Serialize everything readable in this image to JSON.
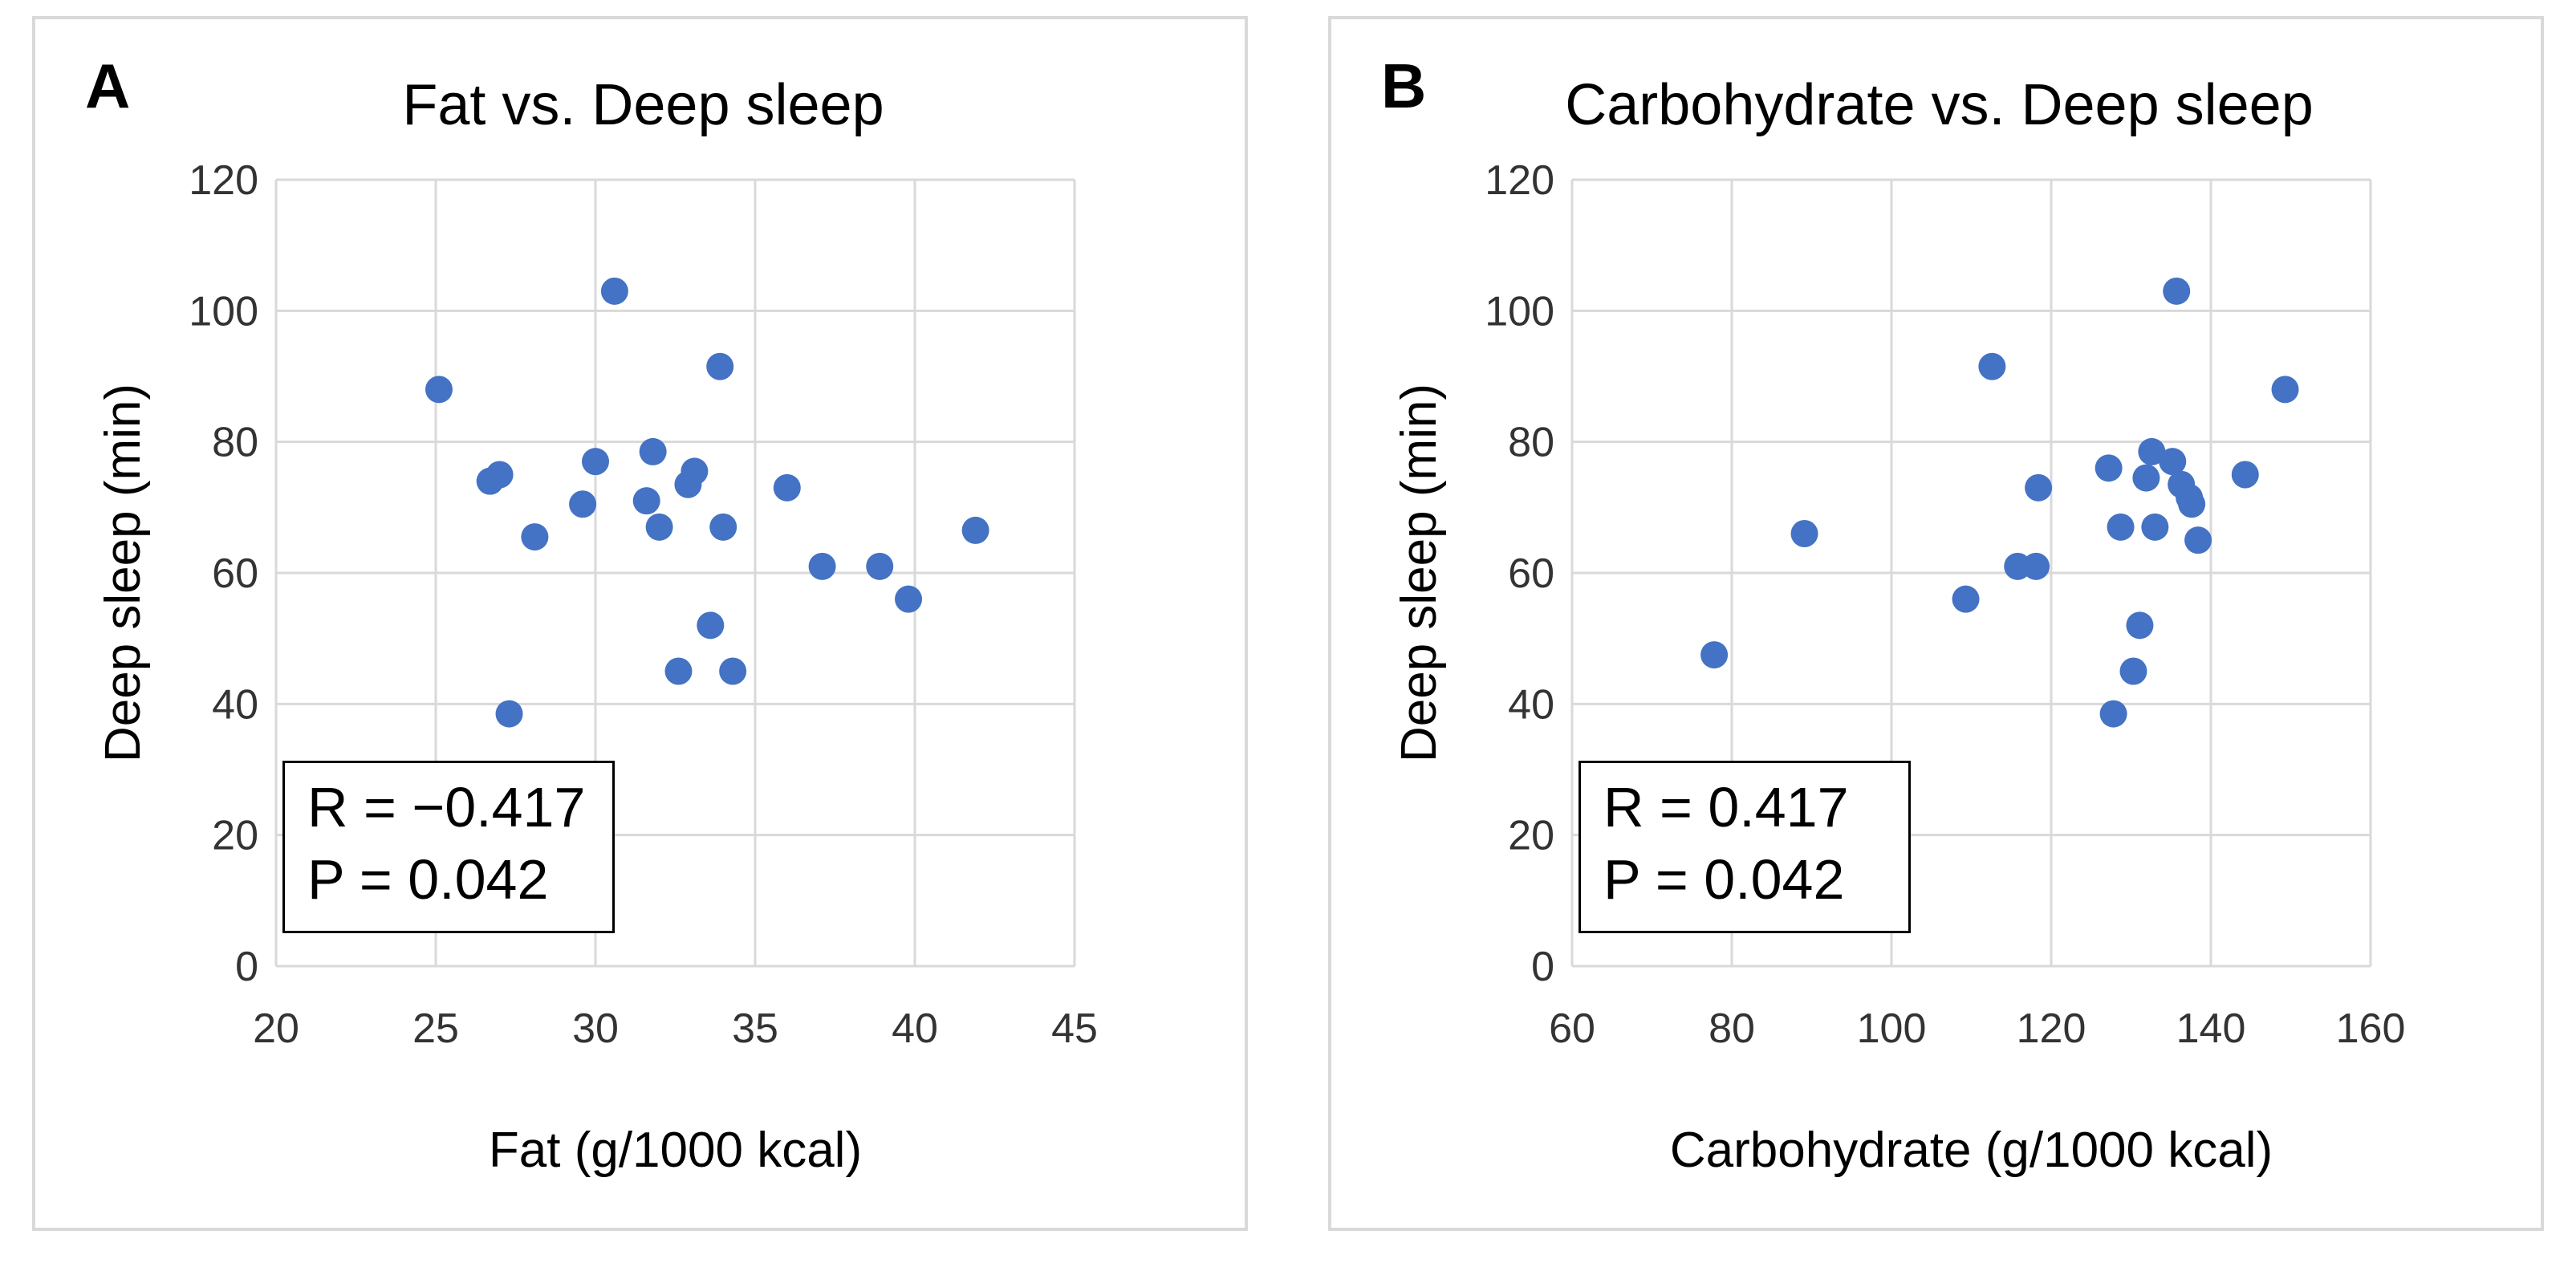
{
  "chart_data": [
    {
      "panel": "A",
      "type": "scatter",
      "title": "Fat vs. Deep sleep",
      "xlabel": "Fat (g/1000 kcal)",
      "ylabel": "Deep sleep (min)",
      "xlim": [
        20,
        45
      ],
      "ylim": [
        0,
        120
      ],
      "xticks": [
        20,
        25,
        30,
        35,
        40,
        45
      ],
      "yticks": [
        0,
        20,
        40,
        60,
        80,
        100,
        120
      ],
      "grid": true,
      "marker_color": "#4472c4",
      "points": [
        [
          25.1,
          88
        ],
        [
          26.7,
          74
        ],
        [
          27.0,
          75
        ],
        [
          27.3,
          38.5
        ],
        [
          28.1,
          65.5
        ],
        [
          29.6,
          70.5
        ],
        [
          30.0,
          77
        ],
        [
          30.6,
          103
        ],
        [
          31.6,
          71
        ],
        [
          31.8,
          78.5
        ],
        [
          32.0,
          67
        ],
        [
          32.6,
          45
        ],
        [
          32.9,
          73.5
        ],
        [
          33.1,
          75.5
        ],
        [
          33.6,
          52
        ],
        [
          33.9,
          91.5
        ],
        [
          34.0,
          67
        ],
        [
          34.3,
          45
        ],
        [
          36.0,
          73
        ],
        [
          37.1,
          61
        ],
        [
          38.9,
          61
        ],
        [
          39.8,
          56
        ],
        [
          41.9,
          66.5
        ]
      ],
      "annotation": {
        "r_text": "R = −0.417",
        "p_text": "P = 0.042"
      }
    },
    {
      "panel": "B",
      "type": "scatter",
      "title": "Carbohydrate vs. Deep sleep",
      "xlabel": "Carbohydrate (g/1000 kcal)",
      "ylabel": "Deep sleep (min)",
      "xlim": [
        60,
        160
      ],
      "ylim": [
        0,
        120
      ],
      "xticks": [
        60,
        80,
        100,
        120,
        140,
        160
      ],
      "yticks": [
        0,
        20,
        40,
        60,
        80,
        100,
        120
      ],
      "grid": true,
      "marker_color": "#4472c4",
      "points": [
        [
          77.8,
          47.5
        ],
        [
          89.1,
          66
        ],
        [
          109.3,
          56
        ],
        [
          112.6,
          91.5
        ],
        [
          115.8,
          61
        ],
        [
          118.1,
          61
        ],
        [
          118.4,
          73
        ],
        [
          127.2,
          76
        ],
        [
          127.8,
          38.5
        ],
        [
          128.7,
          67
        ],
        [
          130.3,
          45
        ],
        [
          131.1,
          52
        ],
        [
          131.9,
          74.5
        ],
        [
          132.6,
          78.5
        ],
        [
          133.0,
          67
        ],
        [
          135.2,
          77
        ],
        [
          135.7,
          103
        ],
        [
          136.3,
          73.5
        ],
        [
          137.3,
          71.5
        ],
        [
          137.6,
          70.5
        ],
        [
          138.4,
          65
        ],
        [
          144.3,
          75
        ],
        [
          149.3,
          88
        ]
      ],
      "annotation": {
        "r_text": "R = 0.417",
        "p_text": "P = 0.042"
      }
    }
  ]
}
